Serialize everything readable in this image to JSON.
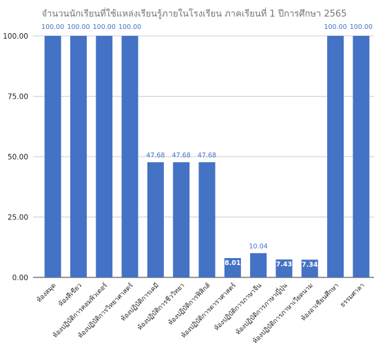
{
  "chart_data": {
    "type": "bar",
    "title": "จำนวนนักเรียนที่ใช้แหล่งเรียนรู้ภายในโรงเรียน ภาคเรียนที่ 1 ปีการศึกษา 2565",
    "xlabel": "",
    "ylabel": "",
    "ylim": [
      0,
      100
    ],
    "yticks": [
      "0.00",
      "25.00",
      "50.00",
      "75.00",
      "100.00"
    ],
    "grid": true,
    "bar_color": "#4472c4",
    "label_color_outside": "#4472c4",
    "label_color_inside": "#ffffff",
    "categories": [
      "ห้องสมุด",
      "ห้องสีเขียว",
      "ห้องปฏิบัติการคอมพิวเตอร์",
      "ห้องปฏิบัติการวิทยาศาสตร์",
      "ห้องปฏิบัติการเคมี",
      "ห้องปฏิบัติการชีววิทยา",
      "ห้องปฏิบัติการฟิสิกส์",
      "ห้องปฏิบัติการดาราศาสตร์",
      "ห้องปฏิบัติการภาษาจีน",
      "ห้องปฏิบัติการภาษาญี่ปุ่น",
      "ห้องปฏิบัติการภาษาเวียดนาม",
      "ห้องอาเซียนศึกษา",
      "ธรรมศาลา"
    ],
    "values": [
      100,
      100,
      100,
      100,
      47.68,
      47.68,
      47.68,
      8.01,
      10.04,
      7.43,
      7.34,
      100,
      100
    ],
    "value_labels": [
      "100.00",
      "100.00",
      "100.00",
      "100.00",
      "47.68",
      "47.68",
      "47.68",
      "8.01",
      "10.04",
      "7.43",
      "7.34",
      "100.00",
      "100.00"
    ]
  }
}
